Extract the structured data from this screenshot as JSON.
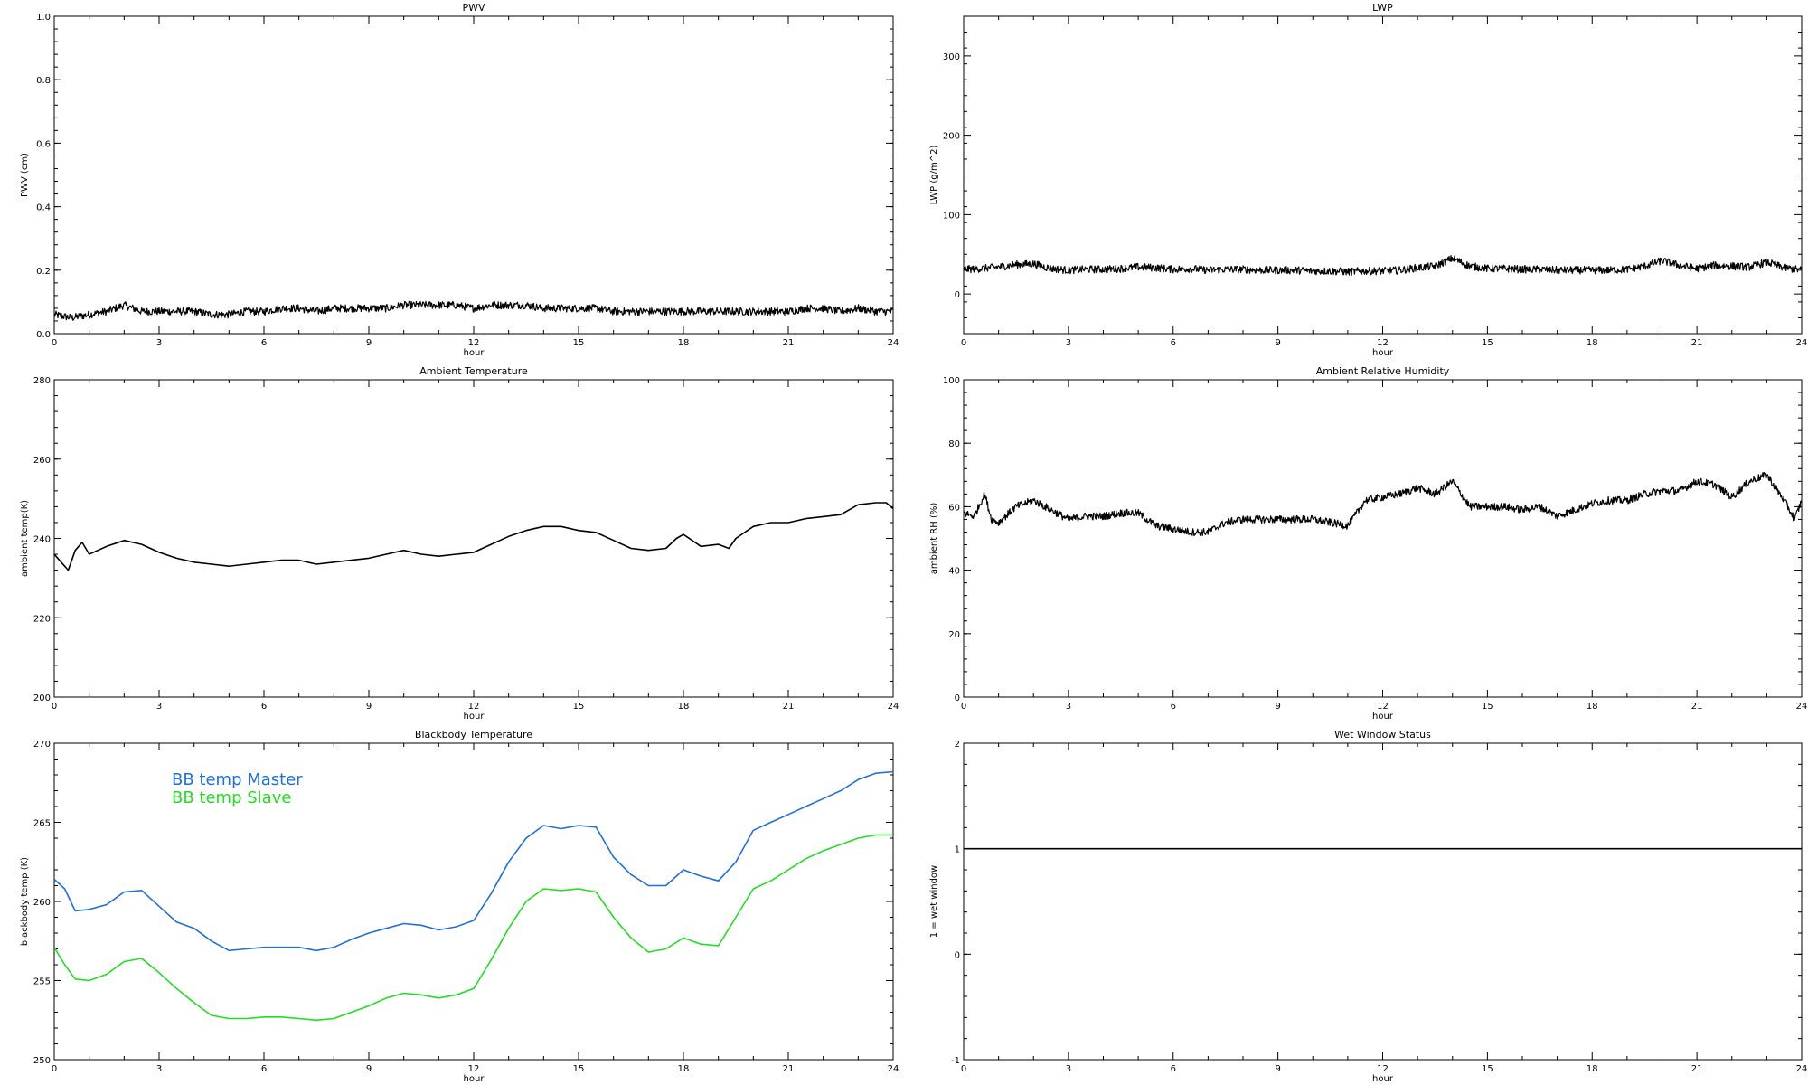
{
  "chart_data": [
    {
      "type": "line",
      "title": "PWV",
      "xlabel": "hour",
      "ylabel": "PWV (cm)",
      "xlim": [
        0,
        24
      ],
      "ylim": [
        0,
        1.0
      ],
      "x_ticks": [
        "0",
        "3",
        "6",
        "9",
        "12",
        "15",
        "18",
        "21",
        "24"
      ],
      "y_ticks": [
        "0.0",
        "0.2",
        "0.4",
        "0.6",
        "0.8",
        "1.0"
      ],
      "series": [
        {
          "color": "#000000",
          "noisy": true,
          "x": [
            0,
            0.5,
            1,
            1.5,
            2,
            2.5,
            3,
            3.5,
            4,
            4.5,
            5,
            5.5,
            6,
            6.5,
            7,
            7.5,
            8,
            8.5,
            9,
            9.5,
            10,
            10.5,
            11,
            11.5,
            12,
            12.5,
            13,
            13.5,
            14,
            14.5,
            15,
            15.5,
            16,
            16.5,
            17,
            17.5,
            18,
            18.5,
            19,
            19.5,
            20,
            20.5,
            21,
            21.5,
            22,
            22.5,
            23,
            23.5,
            24
          ],
          "y": [
            0.06,
            0.05,
            0.06,
            0.07,
            0.09,
            0.07,
            0.07,
            0.07,
            0.07,
            0.06,
            0.06,
            0.07,
            0.07,
            0.08,
            0.08,
            0.07,
            0.08,
            0.08,
            0.08,
            0.08,
            0.09,
            0.09,
            0.09,
            0.09,
            0.08,
            0.09,
            0.09,
            0.09,
            0.08,
            0.08,
            0.08,
            0.08,
            0.07,
            0.07,
            0.07,
            0.07,
            0.07,
            0.07,
            0.07,
            0.07,
            0.07,
            0.07,
            0.07,
            0.08,
            0.08,
            0.07,
            0.08,
            0.07,
            0.07
          ]
        }
      ]
    },
    {
      "type": "line",
      "title": "LWP",
      "xlabel": "hour",
      "ylabel": "LWP (g/m^2)",
      "xlim": [
        0,
        24
      ],
      "ylim": [
        -50,
        350
      ],
      "x_ticks": [
        "0",
        "3",
        "6",
        "9",
        "12",
        "15",
        "18",
        "21",
        "24"
      ],
      "y_ticks": [
        "0",
        "100",
        "200",
        "300"
      ],
      "series": [
        {
          "color": "#000000",
          "noisy": true,
          "x": [
            0,
            0.5,
            1,
            1.5,
            2,
            2.5,
            3,
            3.5,
            4,
            4.5,
            5,
            5.5,
            6,
            6.5,
            7,
            7.5,
            8,
            8.5,
            9,
            9.5,
            10,
            10.5,
            11,
            11.5,
            12,
            12.5,
            13,
            13.5,
            14,
            14.5,
            15,
            15.5,
            16,
            16.5,
            17,
            17.5,
            18,
            18.5,
            19,
            19.5,
            20,
            20.5,
            21,
            21.5,
            22,
            22.5,
            23,
            23.5,
            24
          ],
          "y": [
            31,
            32,
            34,
            37,
            38,
            32,
            30,
            31,
            31,
            32,
            34,
            33,
            31,
            32,
            30,
            31,
            31,
            30,
            30,
            30,
            29,
            29,
            28,
            29,
            29,
            30,
            33,
            35,
            45,
            35,
            32,
            32,
            31,
            31,
            30,
            30,
            30,
            30,
            31,
            35,
            42,
            36,
            32,
            36,
            35,
            34,
            40,
            33,
            30
          ]
        }
      ]
    },
    {
      "type": "line",
      "title": "Ambient Temperature",
      "xlabel": "hour",
      "ylabel": "ambient temp(K)",
      "xlim": [
        0,
        24
      ],
      "ylim": [
        200,
        280
      ],
      "x_ticks": [
        "0",
        "3",
        "6",
        "9",
        "12",
        "15",
        "18",
        "21",
        "24"
      ],
      "y_ticks": [
        "200",
        "220",
        "240",
        "260",
        "280"
      ],
      "series": [
        {
          "color": "#000000",
          "noisy": false,
          "x": [
            0,
            0.2,
            0.4,
            0.6,
            0.8,
            1,
            1.5,
            2,
            2.5,
            3,
            3.5,
            4,
            4.5,
            5,
            5.5,
            6,
            6.5,
            7,
            7.5,
            8,
            8.5,
            9,
            9.5,
            10,
            10.5,
            11,
            11.5,
            12,
            12.5,
            13,
            13.5,
            14,
            14.5,
            15,
            15.5,
            16,
            16.5,
            17,
            17.5,
            17.8,
            18,
            18.5,
            19,
            19.3,
            19.5,
            20,
            20.5,
            21,
            21.5,
            22,
            22.5,
            23,
            23.5,
            23.8,
            24
          ],
          "y": [
            236,
            234,
            232,
            237,
            239,
            236,
            238,
            239.5,
            238.5,
            236.5,
            235,
            234,
            233.5,
            233,
            233.5,
            234,
            234.5,
            234.5,
            233.5,
            234,
            234.5,
            235,
            236,
            237,
            236,
            235.5,
            236,
            236.5,
            238.5,
            240.5,
            242,
            243,
            243,
            242,
            241.5,
            239.5,
            237.5,
            237,
            237.5,
            240,
            241,
            238,
            238.5,
            237.5,
            240,
            243,
            244,
            244,
            245,
            245.5,
            246,
            248.5,
            249,
            249,
            247.5
          ]
        }
      ]
    },
    {
      "type": "line",
      "title": "Ambient Relative Humidity",
      "xlabel": "hour",
      "ylabel": "ambient RH (%)",
      "xlim": [
        0,
        24
      ],
      "ylim": [
        0,
        100
      ],
      "x_ticks": [
        "0",
        "3",
        "6",
        "9",
        "12",
        "15",
        "18",
        "21",
        "24"
      ],
      "y_ticks": [
        "0",
        "20",
        "40",
        "60",
        "80",
        "100"
      ],
      "series": [
        {
          "color": "#000000",
          "noisy": true,
          "x": [
            0,
            0.3,
            0.6,
            0.8,
            1,
            1.5,
            2,
            2.5,
            3,
            3.5,
            4,
            4.5,
            5,
            5.5,
            6,
            6.5,
            7,
            7.5,
            8,
            8.5,
            9,
            9.5,
            10,
            10.5,
            11,
            11.2,
            11.5,
            12,
            12.5,
            13,
            13.5,
            14,
            14.5,
            15,
            15.5,
            16,
            16.5,
            17,
            17.5,
            18,
            18.5,
            19,
            19.5,
            20,
            20.5,
            21,
            21.5,
            22,
            22.5,
            23,
            23.5,
            23.8,
            24
          ],
          "y": [
            58,
            57,
            64,
            56,
            55,
            60,
            62,
            59,
            56,
            57,
            57,
            58,
            58,
            54,
            53,
            52,
            52,
            55,
            56,
            56,
            56,
            56,
            56,
            55,
            54,
            57,
            62,
            63,
            64,
            66,
            64,
            68,
            60,
            60,
            60,
            59,
            60,
            57,
            59,
            61,
            62,
            62,
            64,
            65,
            65,
            68,
            67,
            63,
            68,
            70,
            62,
            56,
            62
          ]
        }
      ]
    },
    {
      "type": "line",
      "title": "Blackbody Temperature",
      "xlabel": "hour",
      "ylabel": "blackbody temp (K)",
      "xlim": [
        0,
        24
      ],
      "ylim": [
        250,
        270
      ],
      "x_ticks": [
        "0",
        "3",
        "6",
        "9",
        "12",
        "15",
        "18",
        "21",
        "24"
      ],
      "y_ticks": [
        "250",
        "255",
        "260",
        "265",
        "270"
      ],
      "series": [
        {
          "name": "BB temp Master",
          "color": "#1f6fe0",
          "noisy": false,
          "x": [
            0,
            0.3,
            0.6,
            1,
            1.5,
            2,
            2.5,
            3,
            3.5,
            4,
            4.5,
            5,
            5.5,
            6,
            6.5,
            7,
            7.5,
            8,
            8.5,
            9,
            9.5,
            10,
            10.5,
            11,
            11.5,
            12,
            12.5,
            13,
            13.5,
            14,
            14.5,
            15,
            15.5,
            16,
            16.5,
            17,
            17.5,
            18,
            18.5,
            19,
            19.5,
            20,
            20.5,
            21,
            21.5,
            22,
            22.5,
            23,
            23.5,
            24
          ],
          "y": [
            261.4,
            260.8,
            259.4,
            259.5,
            259.8,
            260.6,
            260.7,
            259.7,
            258.7,
            258.3,
            257.5,
            256.9,
            257.0,
            257.1,
            257.1,
            257.1,
            256.9,
            257.1,
            257.6,
            258.0,
            258.3,
            258.6,
            258.5,
            258.2,
            258.4,
            258.8,
            260.5,
            262.5,
            264.0,
            264.8,
            264.6,
            264.8,
            264.7,
            262.8,
            261.7,
            261.0,
            261.0,
            262.0,
            261.6,
            261.3,
            262.5,
            264.5,
            265.0,
            265.5,
            266.0,
            266.5,
            267.0,
            267.7,
            268.1,
            268.2
          ]
        },
        {
          "name": "BB temp Slave",
          "color": "#22dd22",
          "noisy": false,
          "x": [
            0,
            0.3,
            0.6,
            1,
            1.5,
            2,
            2.5,
            3,
            3.5,
            4,
            4.5,
            5,
            5.5,
            6,
            6.5,
            7,
            7.5,
            8,
            8.5,
            9,
            9.5,
            10,
            10.5,
            11,
            11.5,
            12,
            12.5,
            13,
            13.5,
            14,
            14.5,
            15,
            15.5,
            16,
            16.5,
            17,
            17.5,
            18,
            18.5,
            19,
            19.5,
            20,
            20.5,
            21,
            21.5,
            22,
            22.5,
            23,
            23.5,
            24
          ],
          "y": [
            257.1,
            256.0,
            255.1,
            255.0,
            255.4,
            256.2,
            256.4,
            255.5,
            254.5,
            253.6,
            252.8,
            252.6,
            252.6,
            252.7,
            252.7,
            252.6,
            252.5,
            252.6,
            253.0,
            253.4,
            253.9,
            254.2,
            254.1,
            253.9,
            254.1,
            254.5,
            256.3,
            258.3,
            260.0,
            260.8,
            260.7,
            260.8,
            260.6,
            259.0,
            257.7,
            256.8,
            257.0,
            257.7,
            257.3,
            257.2,
            259.0,
            260.8,
            261.3,
            262.0,
            262.7,
            263.2,
            263.6,
            264.0,
            264.2,
            264.2
          ]
        }
      ],
      "legend": [
        "BB temp Master",
        "BB temp Slave"
      ],
      "legend_placement": "top-left"
    },
    {
      "type": "line",
      "title": "Wet Window Status",
      "xlabel": "hour",
      "ylabel": "1 = wet window",
      "xlim": [
        0,
        24
      ],
      "ylim": [
        -1,
        2
      ],
      "x_ticks": [
        "0",
        "3",
        "6",
        "9",
        "12",
        "15",
        "18",
        "21",
        "24"
      ],
      "y_ticks": [
        "-1",
        "0",
        "1",
        "2"
      ],
      "series": [
        {
          "color": "#000000",
          "noisy": false,
          "x": [
            0,
            24
          ],
          "y": [
            1,
            1
          ]
        }
      ]
    }
  ]
}
